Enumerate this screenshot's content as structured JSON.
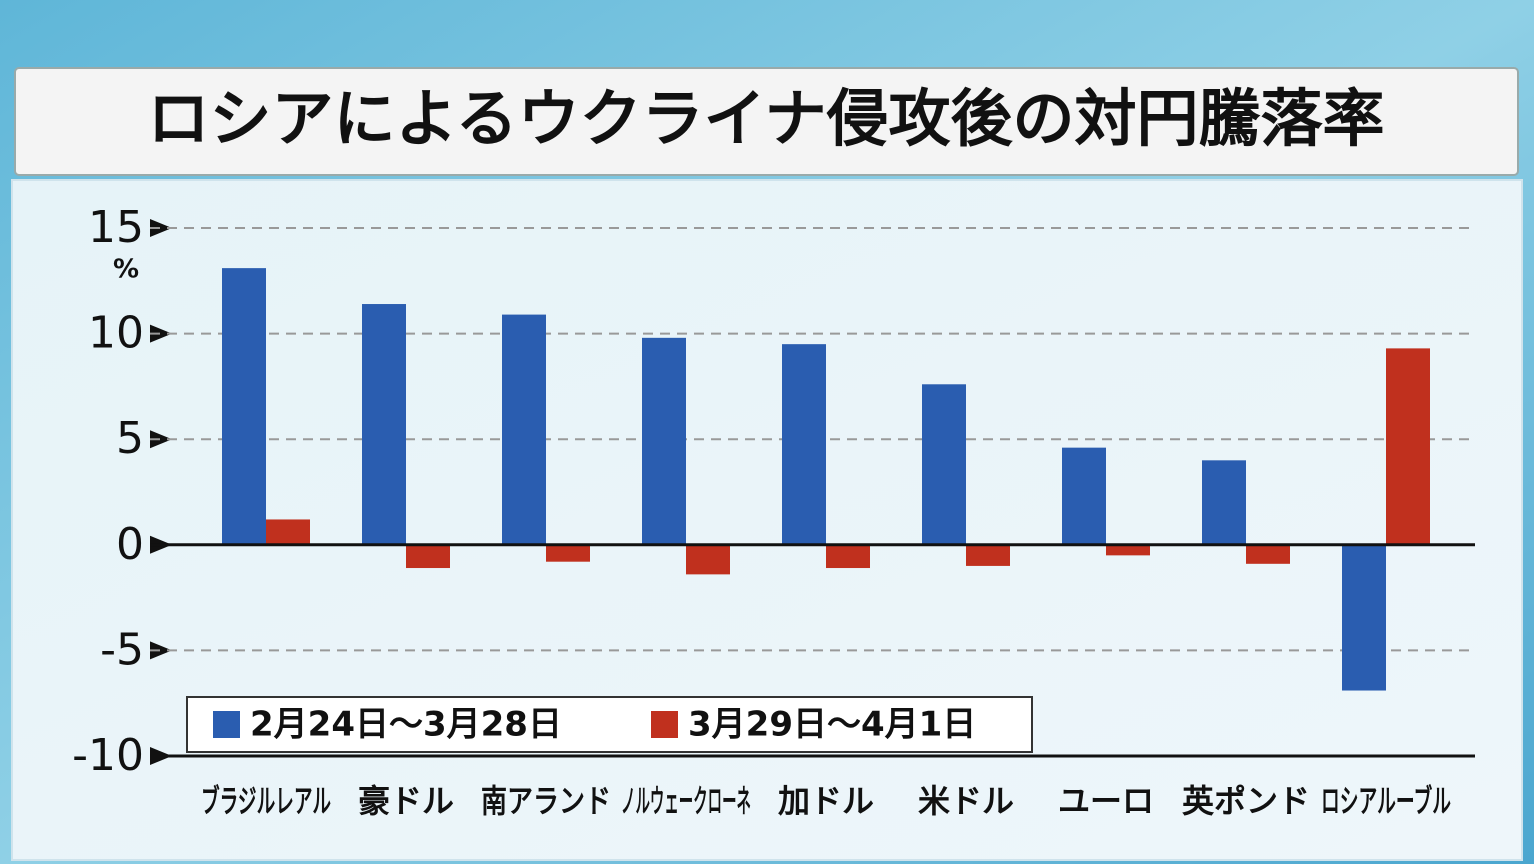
{
  "chart_data": {
    "type": "bar",
    "title": "ロシアによるウクライナ侵攻後の対円騰落率",
    "y_unit": "%",
    "categories": [
      "ブラジルレアル",
      "豪ドル",
      "南アランド",
      "ノルウェークローネ",
      "加ドル",
      "米ドル",
      "ユーロ",
      "英ポンド",
      "ロシアルーブル"
    ],
    "series": [
      {
        "name": "2月24日～3月28日",
        "color": "#2a5db0",
        "values": [
          13.1,
          11.4,
          10.9,
          9.8,
          9.5,
          7.6,
          4.6,
          4.0,
          -6.9
        ]
      },
      {
        "name": "3月29日～4月1日",
        "color": "#c0301e",
        "values": [
          1.2,
          -1.1,
          -0.8,
          -1.4,
          -1.1,
          -1.0,
          -0.5,
          -0.9,
          9.3
        ]
      }
    ],
    "ylim": [
      -10,
      15
    ],
    "yticks": [
      -10,
      -5,
      0,
      5,
      10,
      15
    ],
    "grid": true,
    "legend": "bottom-left"
  }
}
